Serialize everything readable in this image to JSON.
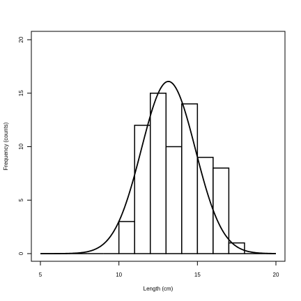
{
  "chart_data": {
    "type": "bar",
    "title": "",
    "xlabel": "Length (cm)",
    "ylabel": "Frequency (counts)",
    "xlim": [
      5,
      20
    ],
    "ylim": [
      0,
      20
    ],
    "x_ticks": [
      5,
      10,
      15,
      20
    ],
    "y_ticks": [
      0,
      5,
      10,
      15,
      20
    ],
    "bins": [
      {
        "from": 5,
        "to": 6,
        "count": 0
      },
      {
        "from": 6,
        "to": 7,
        "count": 0
      },
      {
        "from": 7,
        "to": 8,
        "count": 0
      },
      {
        "from": 8,
        "to": 9,
        "count": 0
      },
      {
        "from": 9,
        "to": 10,
        "count": 0
      },
      {
        "from": 10,
        "to": 11,
        "count": 3
      },
      {
        "from": 11,
        "to": 12,
        "count": 12
      },
      {
        "from": 12,
        "to": 13,
        "count": 15
      },
      {
        "from": 13,
        "to": 14,
        "count": 10
      },
      {
        "from": 14,
        "to": 15,
        "count": 14
      },
      {
        "from": 15,
        "to": 16,
        "count": 9
      },
      {
        "from": 16,
        "to": 17,
        "count": 8
      },
      {
        "from": 17,
        "to": 18,
        "count": 1
      },
      {
        "from": 18,
        "to": 19,
        "count": 0
      },
      {
        "from": 19,
        "to": 20,
        "count": 0
      }
    ],
    "overlay_curve": {
      "type": "normal",
      "mean": 13.15,
      "sd": 1.72,
      "peak": 16.1,
      "x_range": [
        5,
        20
      ]
    },
    "grid": false,
    "legend": "none",
    "colors": {
      "bar_fill": "#ffffff",
      "stroke": "#000000",
      "background": "#ffffff"
    }
  }
}
